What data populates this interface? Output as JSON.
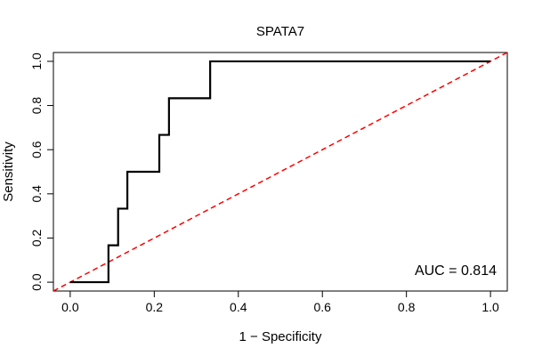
{
  "chart_data": {
    "type": "line",
    "title": "SPATA7",
    "xlabel": "1 − Specificity",
    "ylabel": "Sensitivity",
    "xlim": [
      -0.04,
      1.04
    ],
    "ylim": [
      -0.04,
      1.04
    ],
    "x_ticks": [
      0.0,
      0.2,
      0.4,
      0.6,
      0.8,
      1.0
    ],
    "x_tick_labels": [
      "0.0",
      "0.2",
      "0.4",
      "0.6",
      "0.8",
      "1.0"
    ],
    "y_ticks": [
      0.0,
      0.2,
      0.4,
      0.6,
      0.8,
      1.0
    ],
    "y_tick_labels": [
      "0.0",
      "0.2",
      "0.4",
      "0.6",
      "0.8",
      "1.0"
    ],
    "grid": false,
    "series": [
      {
        "color": "#000000",
        "style": "solid",
        "x": [
          0.0,
          0.091,
          0.091,
          0.114,
          0.114,
          0.136,
          0.136,
          0.212,
          0.212,
          0.235,
          0.235,
          0.333,
          0.333,
          1.0
        ],
        "y": [
          0.0,
          0.0,
          0.167,
          0.167,
          0.333,
          0.333,
          0.5,
          0.5,
          0.667,
          0.667,
          0.833,
          0.833,
          1.0,
          1.0
        ]
      },
      {
        "color": "#ff0000",
        "style": "dashed",
        "x": [
          -0.04,
          1.04
        ],
        "y": [
          -0.04,
          1.04
        ]
      }
    ],
    "annotations": [
      {
        "text": "AUC = 0.814",
        "position": "bottom-right"
      }
    ]
  }
}
